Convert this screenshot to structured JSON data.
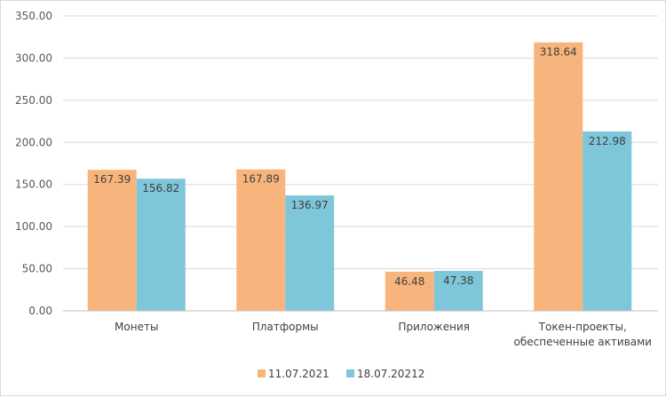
{
  "chart_data": {
    "type": "bar",
    "categories": [
      [
        "Монеты"
      ],
      [
        "Платформы"
      ],
      [
        "Приложения"
      ],
      [
        "Токен-проекты,",
        "обеспеченные активами"
      ]
    ],
    "series": [
      {
        "name": "11.07.2021",
        "color": "#F8B47D",
        "values": [
          167.39,
          167.89,
          46.48,
          318.64
        ]
      },
      {
        "name": "18.07.20212",
        "color": "#7EC6D9",
        "values": [
          156.82,
          136.97,
          47.38,
          212.98
        ]
      }
    ],
    "ylim": [
      0,
      350
    ],
    "yticks": [
      "0.00",
      "50.00",
      "100.00",
      "150.00",
      "200.00",
      "250.00",
      "300.00",
      "350.00"
    ],
    "ytick_values": [
      0,
      50,
      100,
      150,
      200,
      250,
      300,
      350
    ],
    "data_labels": [
      [
        "167.39",
        "167.89",
        "46.48",
        "318.64"
      ],
      [
        "156.82",
        "136.97",
        "47.38",
        "212.98"
      ]
    ],
    "grid": true,
    "legend": "bottom-center"
  }
}
